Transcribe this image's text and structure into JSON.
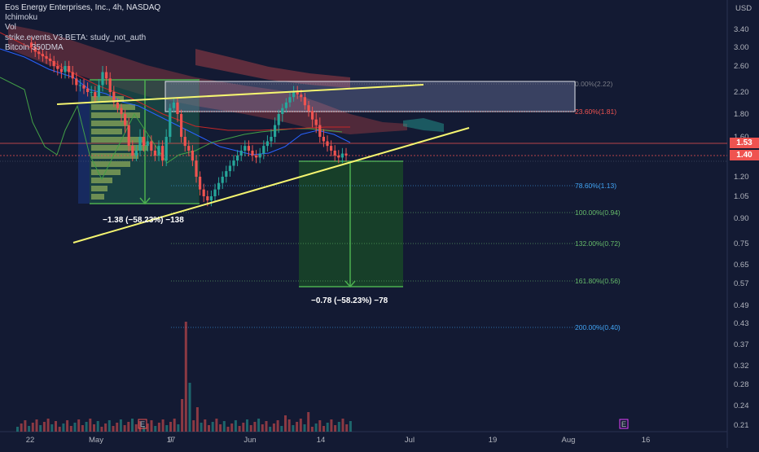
{
  "chart_data": {
    "type": "candlestick",
    "instrument": "Eos Energy Enterprises, Inc., 4h, NASDAQ",
    "indicators": [
      "Ichimoku",
      "Vol",
      "strike.events.V3.BETA: study_not_auth",
      "Bitcoin 350DMA"
    ],
    "currency": "USD",
    "y_ticks": [
      "3.40",
      "3.00",
      "2.60",
      "2.20",
      "1.80",
      "1.60",
      "1.40",
      "1.20",
      "1.05",
      "0.90",
      "0.75",
      "0.65",
      "0.57",
      "0.49",
      "0.43",
      "0.37",
      "0.32",
      "0.28",
      "0.24",
      "0.21"
    ],
    "x_ticks": [
      "22",
      "May",
      "9",
      "17",
      "Jun",
      "14",
      "Jul",
      "19",
      "Aug",
      "16"
    ],
    "last_price": "1.40",
    "alert_price": "1.53",
    "price_colors": {
      "last": "#26a69a",
      "alert": "#ef5350"
    },
    "fib_levels": [
      {
        "label": "0.00%(2.22)",
        "color": "#787b86"
      },
      {
        "label": "23.60%(1.81)",
        "color": "#ef5350"
      },
      {
        "label": "78.60%(1.13)",
        "color": "#42a5f5"
      },
      {
        "label": "100.00%(0.94)",
        "color": "#66bb6a"
      },
      {
        "label": "132.00%(0.72)",
        "color": "#66bb6a"
      },
      {
        "label": "161.80%(0.56)",
        "color": "#66bb6a"
      },
      {
        "label": "200.00%(0.40)",
        "color": "#42a5f5"
      }
    ],
    "measurements": [
      {
        "label": "−1.38 (−58.23%) −138"
      },
      {
        "label": "−0.78 (−58.23%) −78"
      }
    ],
    "events": [
      "E",
      "E"
    ]
  }
}
